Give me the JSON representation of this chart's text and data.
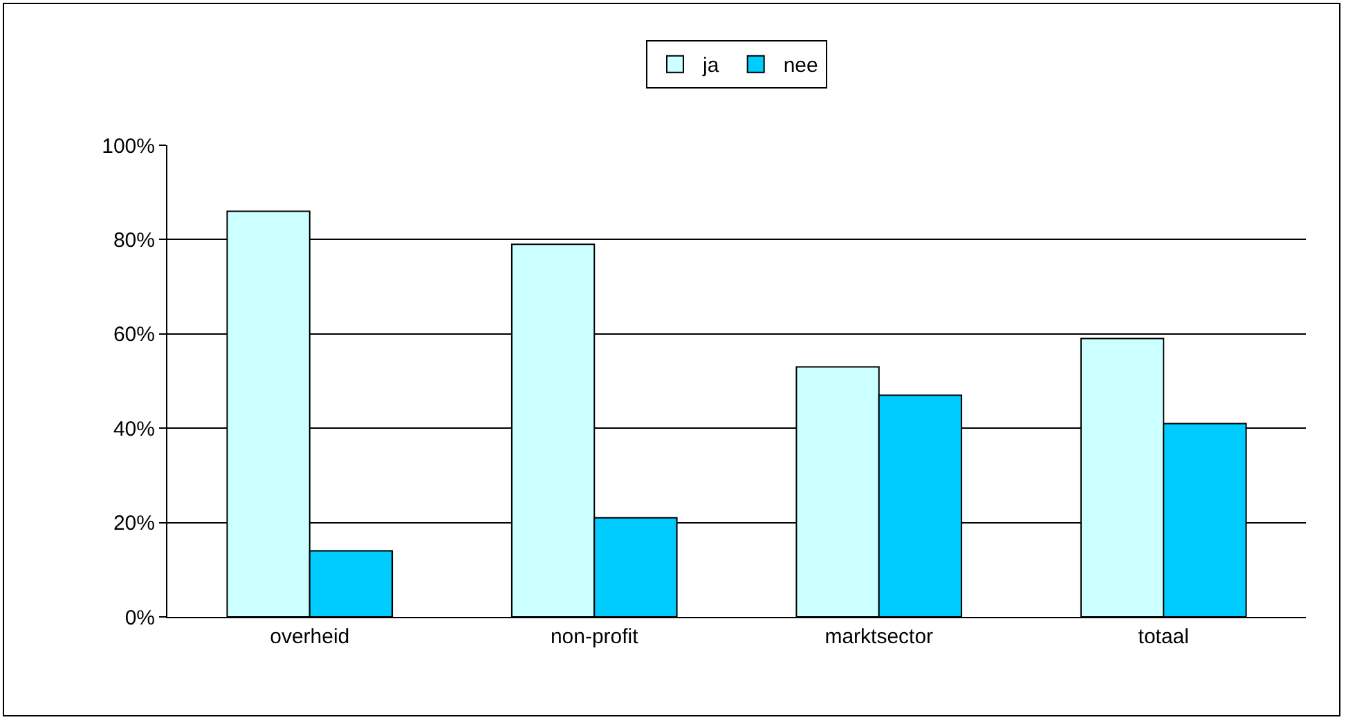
{
  "chart_data": {
    "type": "bar",
    "categories": [
      "overheid",
      "non-profit",
      "marktsector",
      "totaal"
    ],
    "series": [
      {
        "name": "ja",
        "color": "#ccffff",
        "values": [
          86,
          79,
          53,
          59
        ]
      },
      {
        "name": "nee",
        "color": "#00ccff",
        "values": [
          14,
          21,
          47,
          41
        ]
      }
    ],
    "ylim": [
      0,
      100
    ],
    "yticks": [
      {
        "value": 0,
        "label": "0%"
      },
      {
        "value": 20,
        "label": "20%"
      },
      {
        "value": 40,
        "label": "40%"
      },
      {
        "value": 60,
        "label": "60%"
      },
      {
        "value": 80,
        "label": "80%"
      },
      {
        "value": 100,
        "label": "100%"
      }
    ],
    "grid": "y",
    "legend": "top"
  }
}
